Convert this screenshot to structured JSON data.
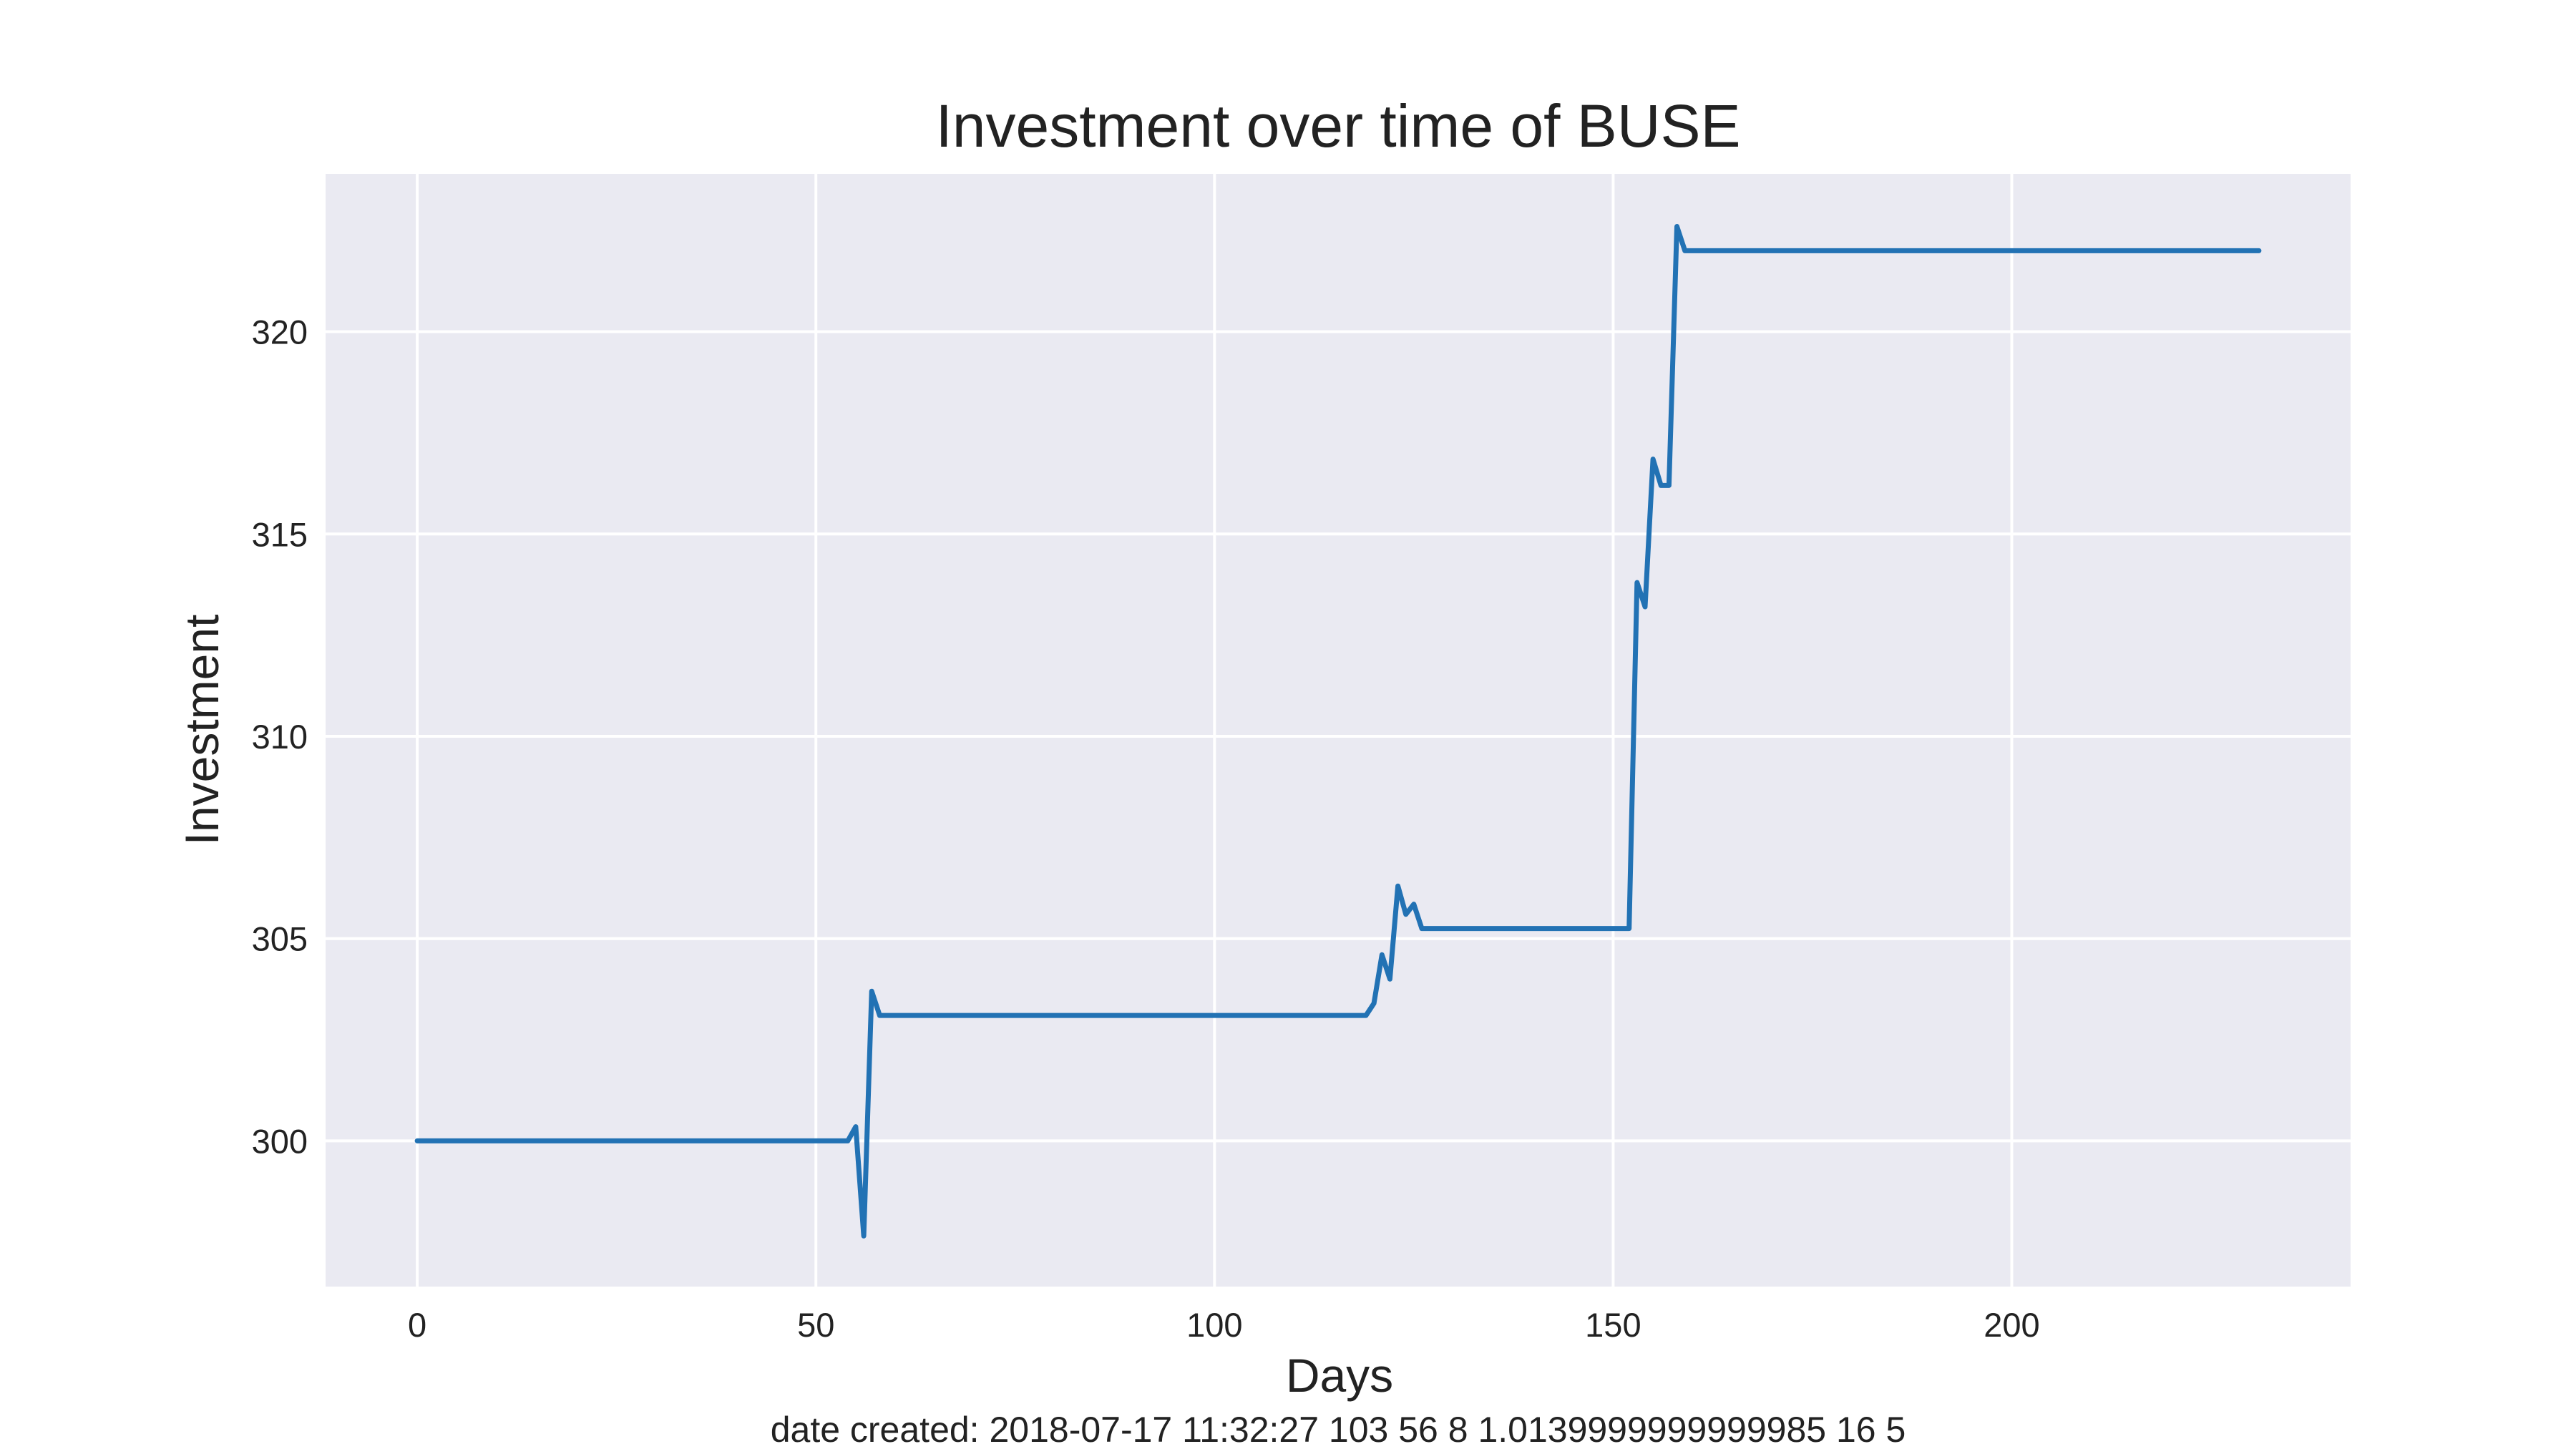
{
  "chart_data": {
    "type": "line",
    "title": "Investment over time of BUSE",
    "xlabel": "Days",
    "ylabel": "Investment",
    "xlim": [
      -11.5,
      242.5
    ],
    "ylim": [
      296.4,
      323.9
    ],
    "xticks": [
      0,
      50,
      100,
      150,
      200
    ],
    "yticks": [
      300,
      305,
      310,
      315,
      320
    ],
    "grid": true,
    "legend": "none",
    "footer": "date created: 2018-07-17 11:32:27 103 56 8 1.0139999999999985 16 5",
    "series": [
      {
        "color": "#2272b4",
        "points": [
          [
            0,
            300.0
          ],
          [
            54,
            300.0
          ],
          [
            55,
            300.35
          ],
          [
            56,
            297.65
          ],
          [
            57,
            303.7
          ],
          [
            58,
            303.1
          ],
          [
            119,
            303.1
          ],
          [
            120,
            303.4
          ],
          [
            121,
            304.6
          ],
          [
            122,
            304.0
          ],
          [
            123,
            306.3
          ],
          [
            124,
            305.6
          ],
          [
            125,
            305.85
          ],
          [
            126,
            305.25
          ],
          [
            152,
            305.25
          ],
          [
            153,
            313.8
          ],
          [
            154,
            313.2
          ],
          [
            155,
            316.85
          ],
          [
            156,
            316.2
          ],
          [
            157,
            316.2
          ],
          [
            158,
            322.6
          ],
          [
            159,
            322.0
          ],
          [
            231,
            322.0
          ]
        ]
      }
    ]
  }
}
